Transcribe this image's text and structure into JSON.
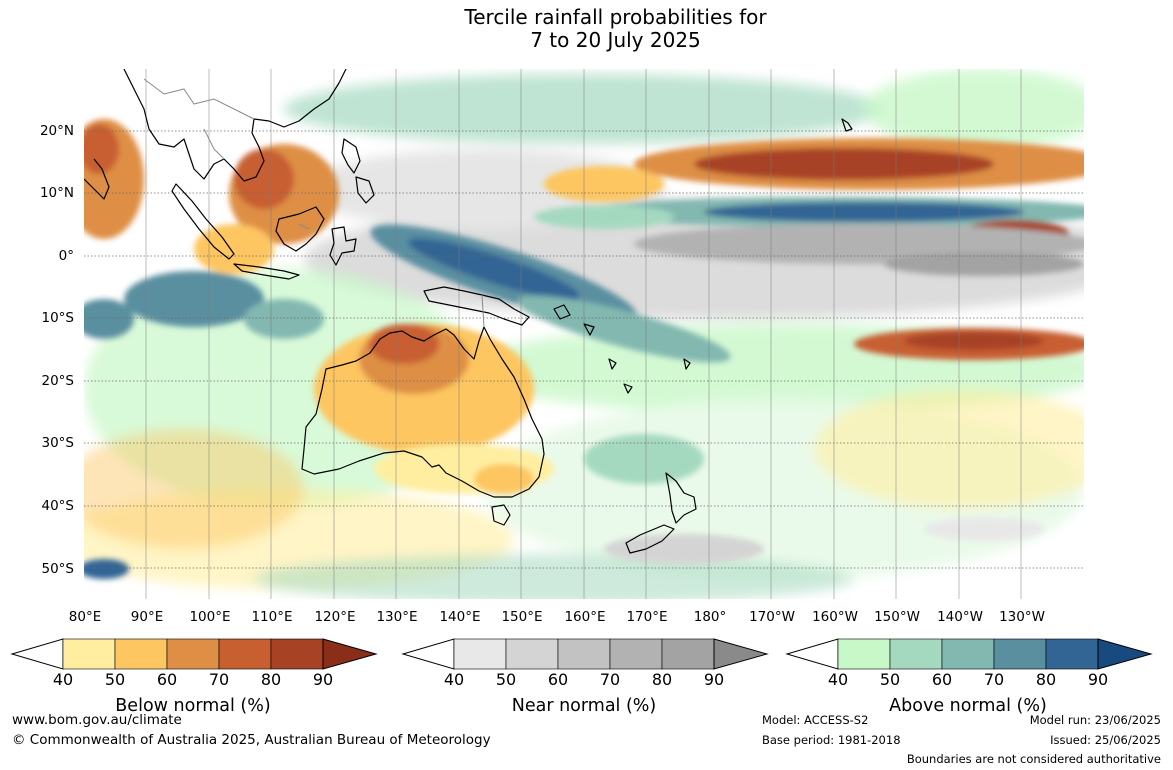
{
  "title_line1": "Tercile rainfall probabilities for",
  "title_line2": "7 to 20 July 2025",
  "lat_labels": [
    "20°N",
    "10°N",
    "0°",
    "10°S",
    "20°S",
    "30°S",
    "40°S",
    "50°S"
  ],
  "lon_labels": [
    "80°E",
    "90°E",
    "100°E",
    "110°E",
    "120°E",
    "130°E",
    "140°E",
    "150°E",
    "160°E",
    "170°E",
    "180°",
    "170°W",
    "160°W",
    "150°W",
    "140°W",
    "130°W"
  ],
  "legends": {
    "below": {
      "title": "Below normal (%)",
      "ticks": [
        "40",
        "50",
        "60",
        "70",
        "80",
        "90"
      ],
      "colors": [
        "#ffeea0",
        "#fdc660",
        "#de8f45",
        "#c85f30",
        "#a84225",
        "#8a2e1a"
      ]
    },
    "near": {
      "title": "Near normal (%)",
      "ticks": [
        "40",
        "50",
        "60",
        "70",
        "80",
        "90"
      ],
      "colors": [
        "#e8e8e8",
        "#d4d4d4",
        "#c2c2c2",
        "#b2b2b2",
        "#a3a3a3",
        "#8a8a8a"
      ]
    },
    "above": {
      "title": "Above normal (%)",
      "ticks": [
        "40",
        "50",
        "60",
        "70",
        "80",
        "90"
      ],
      "colors": [
        "#c8f8c8",
        "#a4d9c0",
        "#82b8b0",
        "#5a8fa0",
        "#336594",
        "#184a80"
      ]
    }
  },
  "footer": {
    "url": "www.bom.gov.au/climate",
    "copyright": "© Commonwealth of Australia 2025, Australian Bureau of Meteorology",
    "model": "Model: ACCESS-S2",
    "base_period": "Base period: 1981-2018",
    "model_run": "Model run: 23/06/2025",
    "issued": "Issued: 25/06/2025",
    "disclaimer": "Boundaries are not considered authoritative"
  }
}
